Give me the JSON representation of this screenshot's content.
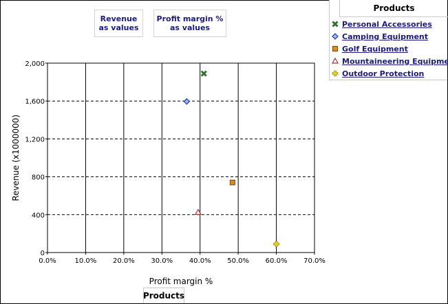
{
  "measures": [
    "Revenue\nas values",
    "Profit margin %\nas values"
  ],
  "legend": {
    "title": "Products",
    "items": [
      {
        "label": "Personal Accessories",
        "marker": "x",
        "color": "#2e7d32"
      },
      {
        "label": "Camping Equipment",
        "marker": "diamond",
        "color": "#1f3fa8"
      },
      {
        "label": "Golf Equipment",
        "marker": "square",
        "color": "#e08a1e"
      },
      {
        "label": "Mountaineering Equipment",
        "marker": "triangle",
        "color": "#a83232"
      },
      {
        "label": "Outdoor Protection",
        "marker": "plus",
        "color": "#e8d21a"
      }
    ]
  },
  "footer_tab": "Products",
  "chart_data": {
    "type": "scatter",
    "xlabel": "Profit margin %",
    "ylabel": "Revenue (x1000000)",
    "xlim": [
      0,
      0.7
    ],
    "ylim": [
      0,
      2000
    ],
    "x_ticks": [
      "0.0%",
      "10.0%",
      "20.0%",
      "30.0%",
      "40.0%",
      "50.0%",
      "60.0%",
      "70.0%"
    ],
    "y_ticks": [
      "0",
      "400",
      "800",
      "1,200",
      "1,600",
      "2,000"
    ],
    "x_grid": "solid",
    "y_grid": "dashed",
    "legend_position": "top-right",
    "series": [
      {
        "name": "Personal Accessories",
        "x": 0.41,
        "y": 1890
      },
      {
        "name": "Camping Equipment",
        "x": 0.365,
        "y": 1595
      },
      {
        "name": "Golf Equipment",
        "x": 0.485,
        "y": 740
      },
      {
        "name": "Mountaineering Equipment",
        "x": 0.395,
        "y": 425
      },
      {
        "name": "Outdoor Protection",
        "x": 0.6,
        "y": 90
      }
    ]
  }
}
